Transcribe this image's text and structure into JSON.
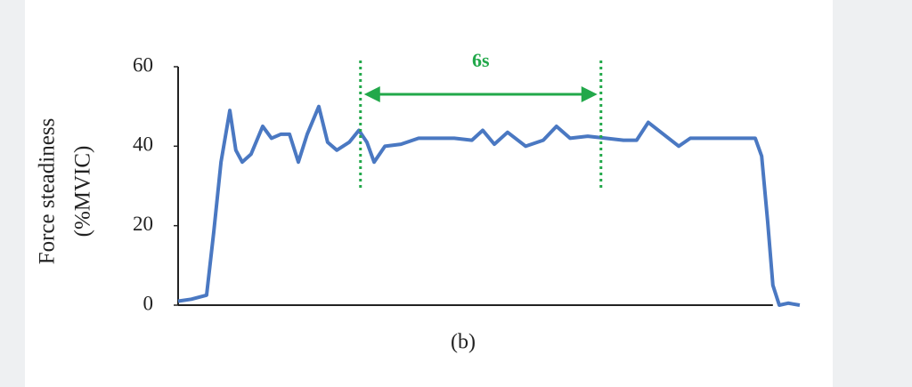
{
  "chart_data": {
    "type": "line",
    "ylabel": [
      "Force steadiness",
      "(%MVIC)"
    ],
    "caption": "(b)",
    "annotation": {
      "text": "6s",
      "x": [
        4.55,
        10.55
      ]
    },
    "xlim": [
      0,
      14.84
    ],
    "ylim": [
      0,
      60
    ],
    "yticks": [
      0,
      20,
      40,
      60
    ],
    "x": [
      0,
      0.33,
      0.71,
      0.89,
      1.07,
      1.29,
      1.44,
      1.6,
      1.82,
      2.11,
      2.33,
      2.56,
      2.78,
      3,
      3.22,
      3.51,
      3.73,
      3.96,
      4.27,
      4.51,
      4.71,
      4.89,
      5.16,
      5.56,
      6,
      6.44,
      6.89,
      7.33,
      7.6,
      7.89,
      8.22,
      8.67,
      9.11,
      9.44,
      9.78,
      10.22,
      10.67,
      11.11,
      11.44,
      11.73,
      12.11,
      12.49,
      12.78,
      13.22,
      13.67,
      14.11,
      14.4,
      14.56,
      14.71,
      14.84,
      15,
      15.22,
      15.51
    ],
    "series": [
      {
        "color": "#4a78c2",
        "values": [
          1,
          1.5,
          2.5,
          18.5,
          36,
          49,
          39,
          36,
          38,
          45,
          42,
          43,
          43,
          36,
          43,
          50,
          41,
          39,
          41,
          44,
          41,
          36,
          40,
          40.5,
          42,
          42,
          42,
          41.5,
          44,
          40.5,
          43.5,
          40,
          41.5,
          45,
          42,
          42.5,
          42,
          41.5,
          41.5,
          46,
          43,
          40,
          42,
          42,
          42,
          42,
          42,
          37.5,
          21,
          5,
          0,
          0.5,
          0
        ]
      }
    ],
    "annotation_color": "#22a84a"
  }
}
